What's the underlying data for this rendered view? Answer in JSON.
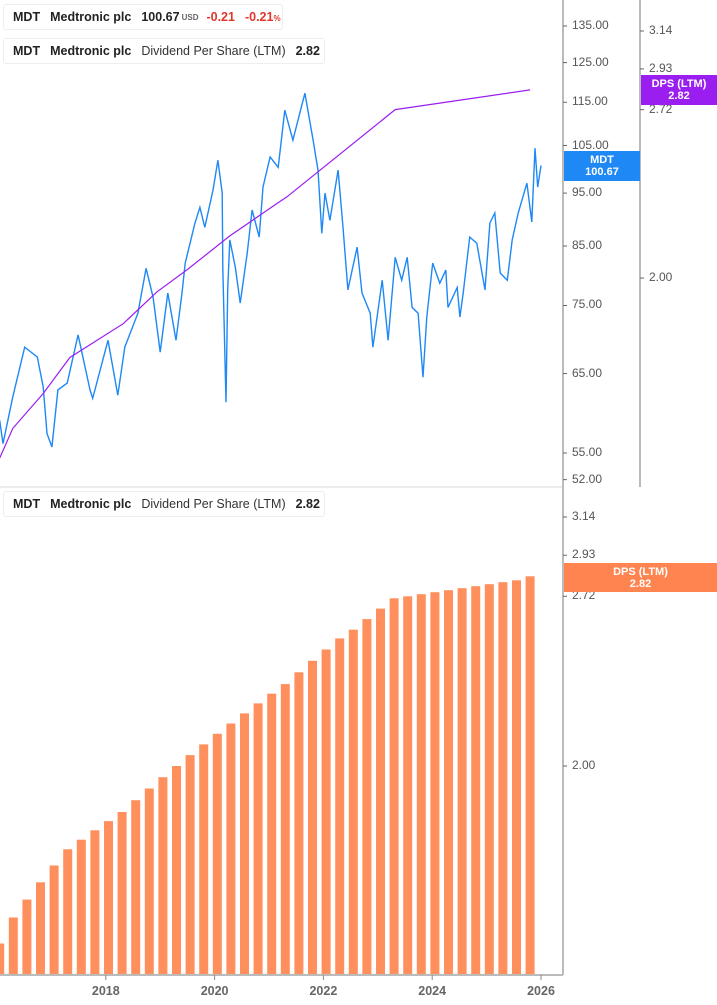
{
  "legend_price": {
    "ticker": "MDT",
    "name": "Medtronic plc",
    "price": "100.67",
    "currency": "USD",
    "change": "-0.21",
    "change_pct": "-0.21",
    "pct_sign": "%"
  },
  "legend_dps_top": {
    "ticker": "MDT",
    "name": "Medtronic plc",
    "metric": "Dividend Per Share (LTM)",
    "value": "2.82"
  },
  "legend_dps_bottom": {
    "ticker": "MDT",
    "name": "Medtronic plc",
    "metric": "Dividend Per Share (LTM)",
    "value": "2.82"
  },
  "tags": {
    "price": {
      "label": "MDT",
      "value": "100.67"
    },
    "dps_top": {
      "label": "DPS (LTM)",
      "value": "2.82"
    },
    "dps_bottom": {
      "label": "DPS (LTM)",
      "value": "2.82"
    }
  },
  "colors": {
    "price": "#1e88f5",
    "dps_line": "#9a1ef0",
    "dps_bar": "#ff8f5c",
    "negative": "#e0352b"
  },
  "chart_data": [
    {
      "type": "line",
      "panel": "top",
      "scale": "log",
      "price_axis_ticks": [
        "135.00",
        "125.00",
        "115.00",
        "105.00",
        "95.00",
        "85.00",
        "75.00",
        "65.00",
        "55.00",
        "52.00"
      ],
      "dps_axis_ticks": [
        "3.14",
        "2.93",
        "2.72",
        "2.00"
      ],
      "ylim_price": [
        52,
        145
      ],
      "ylim_dps": [
        1.4,
        3.3
      ],
      "series": [
        {
          "name": "MDT",
          "axis": "price",
          "x": [
            2016.05,
            2016.11,
            2016.29,
            2016.51,
            2016.74,
            2016.85,
            2016.92,
            2017.01,
            2017.12,
            2017.29,
            2017.49,
            2017.71,
            2017.76,
            2018.04,
            2018.22,
            2018.35,
            2018.59,
            2018.74,
            2018.87,
            2019.0,
            2019.14,
            2019.29,
            2019.4,
            2019.46,
            2019.64,
            2019.73,
            2019.82,
            2019.97,
            2020.06,
            2020.14,
            2020.15,
            2020.21,
            2020.24,
            2020.28,
            2020.38,
            2020.47,
            2020.6,
            2020.69,
            2020.82,
            2020.89,
            2021.02,
            2021.17,
            2021.29,
            2021.44,
            2021.66,
            2021.81,
            2021.9,
            2021.97,
            2022.03,
            2022.12,
            2022.27,
            2022.36,
            2022.45,
            2022.62,
            2022.71,
            2022.86,
            2022.91,
            2023.08,
            2023.19,
            2023.32,
            2023.44,
            2023.54,
            2023.63,
            2023.74,
            2023.83,
            2023.9,
            2024.01,
            2024.14,
            2024.25,
            2024.29,
            2024.46,
            2024.51,
            2024.57,
            2024.69,
            2024.82,
            2024.97,
            2025.06,
            2025.15,
            2025.25,
            2025.38,
            2025.47,
            2025.58,
            2025.74,
            2025.83,
            2025.89,
            2025.94,
            2026.0
          ],
          "y": [
            58.9,
            56.1,
            61.9,
            68.7,
            67.3,
            63.2,
            57.3,
            55.7,
            62.8,
            63.7,
            70.5,
            62.8,
            61.7,
            69.7,
            62.1,
            68.7,
            73.8,
            81.1,
            76.3,
            68.0,
            77.0,
            69.7,
            77.0,
            82.0,
            89.2,
            92.2,
            88.4,
            95.6,
            101.8,
            95.0,
            81.3,
            61.2,
            77.5,
            86.1,
            81.3,
            75.4,
            83.7,
            91.7,
            86.6,
            96.2,
            102.5,
            100.3,
            113.1,
            106.2,
            117.2,
            106.2,
            99.7,
            87.3,
            95.0,
            89.7,
            99.7,
            88.4,
            77.5,
            84.8,
            77.0,
            73.8,
            68.7,
            79.1,
            69.7,
            83.0,
            79.1,
            83.0,
            74.7,
            73.8,
            64.5,
            73.2,
            82.0,
            78.6,
            80.8,
            74.7,
            77.9,
            73.2,
            77.0,
            86.6,
            85.5,
            77.5,
            89.2,
            91.1,
            80.3,
            79.1,
            86.1,
            91.1,
            97.0,
            89.4,
            104.4,
            96.2,
            100.67
          ]
        },
        {
          "name": "DPS (LTM)",
          "axis": "dps",
          "x": [
            2016.05,
            2016.29,
            2016.85,
            2017.34,
            2018.32,
            2018.94,
            2019.49,
            2020.28,
            2021.2,
            2021.33,
            2023.32,
            2025.8
          ],
          "y": [
            1.44,
            1.52,
            1.62,
            1.73,
            1.84,
            1.95,
            2.03,
            2.16,
            2.3,
            2.32,
            2.72,
            2.82
          ]
        }
      ]
    },
    {
      "type": "bar",
      "panel": "bottom",
      "scale": "log",
      "dps_axis_ticks": [
        "3.14",
        "2.93",
        "2.72",
        "2.00"
      ],
      "ylim": [
        1.37,
        3.3
      ],
      "x_ticks": [
        "2018",
        "2020",
        "2022",
        "2024",
        "2026"
      ],
      "x": [
        2016.05,
        2016.3,
        2016.55,
        2016.8,
        2017.05,
        2017.3,
        2017.55,
        2017.8,
        2018.05,
        2018.3,
        2018.55,
        2018.8,
        2019.05,
        2019.3,
        2019.55,
        2019.8,
        2020.05,
        2020.3,
        2020.55,
        2020.8,
        2021.05,
        2021.3,
        2021.55,
        2021.8,
        2022.05,
        2022.3,
        2022.55,
        2022.8,
        2023.05,
        2023.3,
        2023.55,
        2023.8,
        2024.05,
        2024.3,
        2024.55,
        2024.8,
        2025.05,
        2025.3,
        2025.55,
        2025.8
      ],
      "values": [
        1.45,
        1.52,
        1.57,
        1.62,
        1.67,
        1.72,
        1.75,
        1.78,
        1.81,
        1.84,
        1.88,
        1.92,
        1.96,
        2.0,
        2.04,
        2.08,
        2.12,
        2.16,
        2.2,
        2.24,
        2.28,
        2.32,
        2.37,
        2.42,
        2.47,
        2.52,
        2.56,
        2.61,
        2.66,
        2.71,
        2.72,
        2.73,
        2.74,
        2.75,
        2.76,
        2.77,
        2.78,
        2.79,
        2.8,
        2.82
      ]
    }
  ]
}
